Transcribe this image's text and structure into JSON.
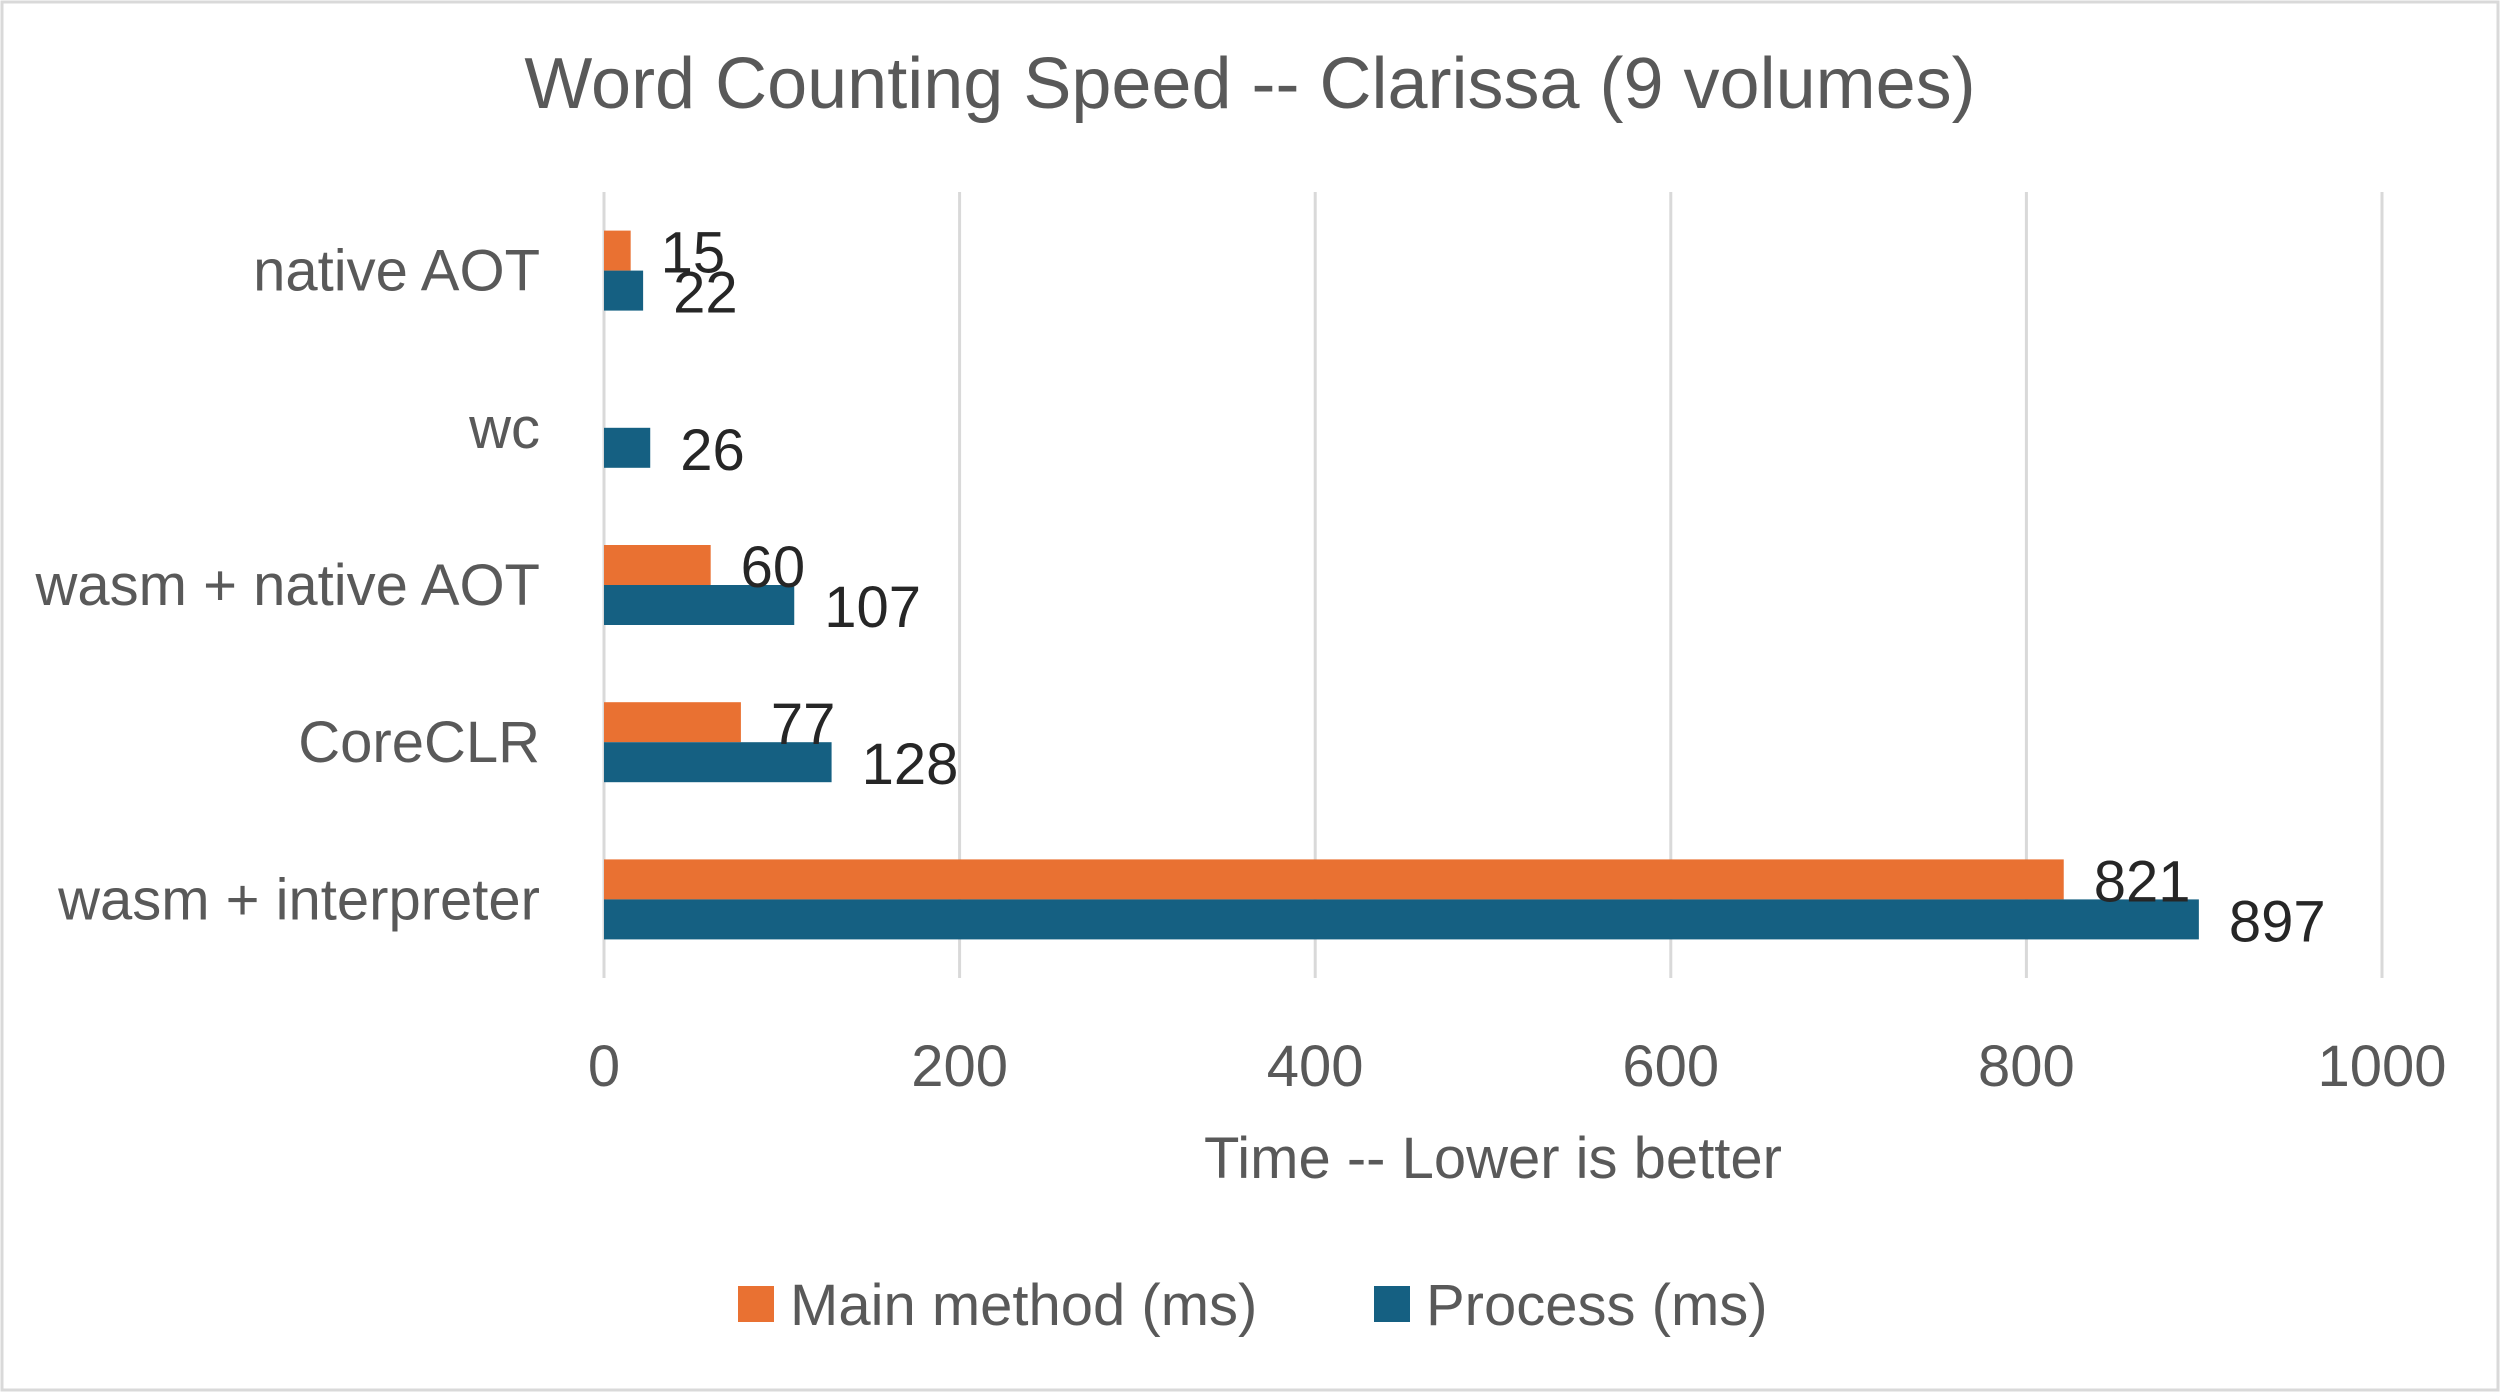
{
  "chart_data": {
    "type": "bar",
    "orientation": "horizontal",
    "title": "Word Counting  Speed -- Clarissa (9 volumes)",
    "xlabel": "Time -- Lower is better",
    "ylabel": "",
    "categories": [
      "native AOT",
      "wc",
      "wasm + native AOT",
      "CoreCLR",
      "wasm + interpreter"
    ],
    "series": [
      {
        "name": "Main method (ms)",
        "color": "#E97132",
        "values": [
          15,
          null,
          60,
          77,
          821
        ]
      },
      {
        "name": "Process (ms)",
        "color": "#156082",
        "values": [
          22,
          26,
          107,
          128,
          897
        ]
      }
    ],
    "xlim": [
      0,
      1000
    ],
    "xticks": [
      0,
      200,
      400,
      600,
      800,
      1000
    ],
    "grid": "vertical",
    "legend": "bottom",
    "data_labels": true
  }
}
